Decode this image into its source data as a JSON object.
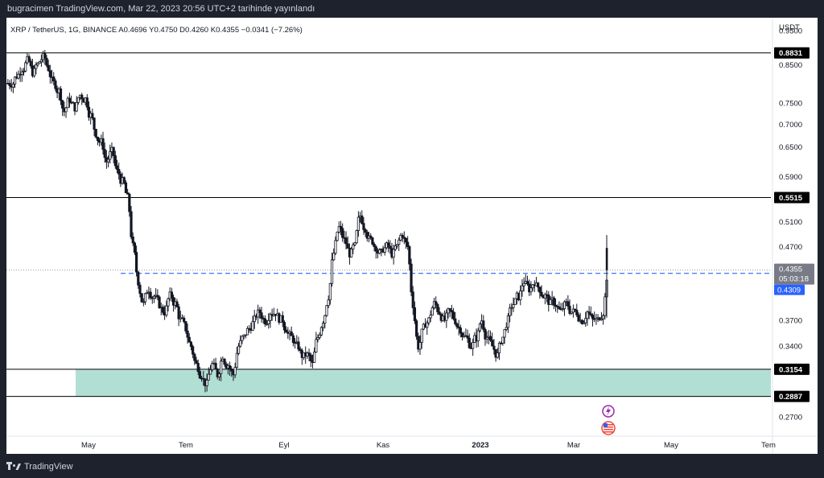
{
  "header": {
    "publish_text": "bugracimen TradingView.com, Mar 22, 2023 20:56 UTC+2 tarihinde yayınlandı"
  },
  "footer": {
    "brand": "TradingView"
  },
  "chart_data": {
    "type": "candlestick",
    "symbol_line": "XRP / TetherUS, 1G, BINANCE  A0.4696  Y0.4750  D0.4260  K0.4355  −0.0341 (−7.26%)",
    "currency_label": "USDT",
    "y_scale": "log",
    "ylim": [
      0.255,
      0.985
    ],
    "x_ticks": [
      {
        "label": "May",
        "bold": false
      },
      {
        "label": "Tem",
        "bold": false
      },
      {
        "label": "Eyl",
        "bold": false
      },
      {
        "label": "Kas",
        "bold": false
      },
      {
        "label": "2023",
        "bold": true
      },
      {
        "label": "Mar",
        "bold": false
      },
      {
        "label": "May",
        "bold": false
      },
      {
        "label": "Tem",
        "bold": false
      }
    ],
    "y_ticks": [
      0.95,
      0.85,
      0.75,
      0.7,
      0.65,
      0.59,
      0.51,
      0.47,
      0.37,
      0.34,
      0.27
    ],
    "y_tick_labels": [
      "0.9500",
      "0.8500",
      "0.7500",
      "0.7000",
      "0.6500",
      "0.5900",
      "0.5100",
      "0.4700",
      "0.3700",
      "0.3400",
      "0.2700"
    ],
    "horizontal_levels": [
      {
        "value": 0.8831,
        "label": "0.8831"
      },
      {
        "value": 0.5515,
        "label": "0.5515"
      },
      {
        "value": 0.3154,
        "label": "0.3154"
      },
      {
        "value": 0.2887,
        "label": "0.2887"
      }
    ],
    "support_zone": {
      "low": 0.2887,
      "high": 0.3154,
      "color": "#b2dfd4"
    },
    "dashed_level": {
      "value": 0.4309,
      "color": "#2962ff"
    },
    "last_price": {
      "value": 0.4355,
      "label": "0.4355",
      "countdown": "05:03:18"
    },
    "blue_badge": {
      "value": 0.4309,
      "label": "0.4309"
    },
    "price_path": [
      [
        0.8,
        0.82,
        0.84,
        0.86,
        0.83,
        0.85,
        0.87,
        0.84,
        0.8,
        0.78,
        0.73,
        0.76,
        0.74,
        0.77,
        0.76,
        0.72,
        0.68,
        0.66,
        0.62,
        0.64,
        0.6,
        0.58,
        0.55,
        0.47,
        0.42,
        0.39,
        0.41,
        0.4,
        0.39,
        0.38,
        0.4,
        0.39,
        0.37,
        0.36,
        0.34,
        0.32,
        0.31,
        0.3,
        0.32,
        0.31,
        0.33,
        0.32,
        0.31,
        0.34,
        0.35,
        0.36,
        0.37,
        0.38,
        0.37,
        0.38,
        0.38,
        0.37,
        0.36,
        0.35,
        0.34,
        0.33,
        0.33,
        0.32,
        0.35,
        0.37,
        0.4,
        0.46,
        0.5,
        0.48,
        0.46,
        0.47,
        0.52,
        0.5,
        0.48,
        0.47,
        0.46,
        0.47,
        0.46,
        0.47,
        0.49,
        0.47,
        0.39,
        0.34,
        0.36,
        0.37,
        0.39,
        0.38,
        0.37,
        0.38,
        0.37,
        0.36,
        0.35,
        0.34,
        0.35,
        0.37,
        0.35,
        0.34,
        0.33,
        0.35,
        0.37,
        0.39,
        0.4,
        0.42,
        0.41,
        0.42,
        0.41,
        0.4,
        0.39,
        0.39,
        0.38,
        0.39,
        0.38,
        0.38,
        0.37,
        0.38,
        0.37,
        0.37,
        0.38,
        0.44
      ]
    ],
    "markers": [
      {
        "name": "lightning-icon",
        "color": "#9c27b0"
      },
      {
        "name": "us-flag-icon",
        "color": "#f44336"
      }
    ]
  }
}
